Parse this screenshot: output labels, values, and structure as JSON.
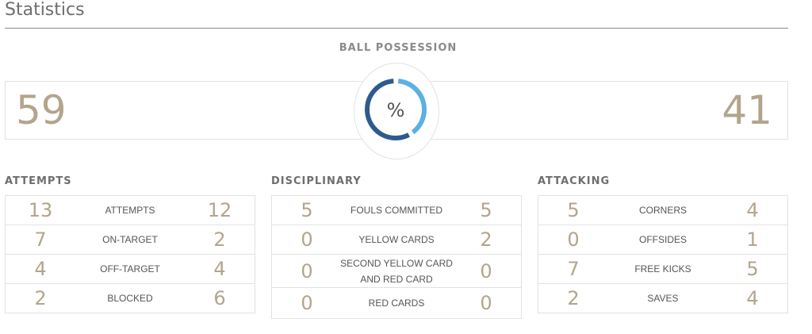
{
  "title": "Statistics",
  "possession": {
    "label": "BALL POSSESSION",
    "home": "59",
    "away": "41",
    "symbol": "%",
    "home_fraction": 0.59,
    "colors": {
      "home": "#2e5b8c",
      "away": "#5ab1e3",
      "value": "#b2a58c"
    }
  },
  "sections": {
    "attempts": {
      "label": "ATTEMPTS",
      "rows": [
        {
          "home": "13",
          "label": "ATTEMPTS",
          "away": "12"
        },
        {
          "home": "7",
          "label": "ON-TARGET",
          "away": "2"
        },
        {
          "home": "4",
          "label": "OFF-TARGET",
          "away": "4"
        },
        {
          "home": "2",
          "label": "BLOCKED",
          "away": "6"
        }
      ]
    },
    "disciplinary": {
      "label": "DISCIPLINARY",
      "rows": [
        {
          "home": "5",
          "label": "FOULS COMMITTED",
          "away": "5"
        },
        {
          "home": "0",
          "label": "YELLOW CARDS",
          "away": "2"
        },
        {
          "home": "0",
          "label": "SECOND YELLOW CARD AND RED CARD",
          "away": "0"
        },
        {
          "home": "0",
          "label": "RED CARDS",
          "away": "0"
        }
      ]
    },
    "attacking": {
      "label": "ATTACKING",
      "rows": [
        {
          "home": "5",
          "label": "CORNERS",
          "away": "4"
        },
        {
          "home": "0",
          "label": "OFFSIDES",
          "away": "1"
        },
        {
          "home": "7",
          "label": "FREE KICKS",
          "away": "5"
        },
        {
          "home": "2",
          "label": "SAVES",
          "away": "4"
        }
      ]
    }
  }
}
